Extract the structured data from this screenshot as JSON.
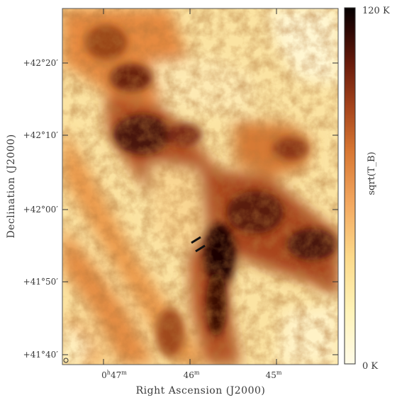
{
  "figure": {
    "xlabel": "Right Ascension (J2000)",
    "ylabel": "Declination (J2000)",
    "colorbar": {
      "label": "sqrt(T_B)",
      "max_label": "120 K",
      "min_label": "0 K",
      "colors": [
        "#fffbe8",
        "#fff3b8",
        "#fcd98a",
        "#f3a860",
        "#d77632",
        "#a5441c",
        "#6a1c0c",
        "#2a0704",
        "#050102"
      ]
    },
    "ra_ticks": [
      {
        "main": "0",
        "unit": "h",
        "min": "47",
        "minunit": "m"
      },
      {
        "main": "",
        "unit": "",
        "min": "46",
        "minunit": "m"
      },
      {
        "main": "",
        "unit": "",
        "min": "45",
        "minunit": "m"
      }
    ],
    "dec_ticks": [
      {
        "label": "+42°20′"
      },
      {
        "label": "+42°10′"
      },
      {
        "label": "+42°00′"
      },
      {
        "label": "+41°50′"
      },
      {
        "label": "+41°40′"
      }
    ]
  }
}
